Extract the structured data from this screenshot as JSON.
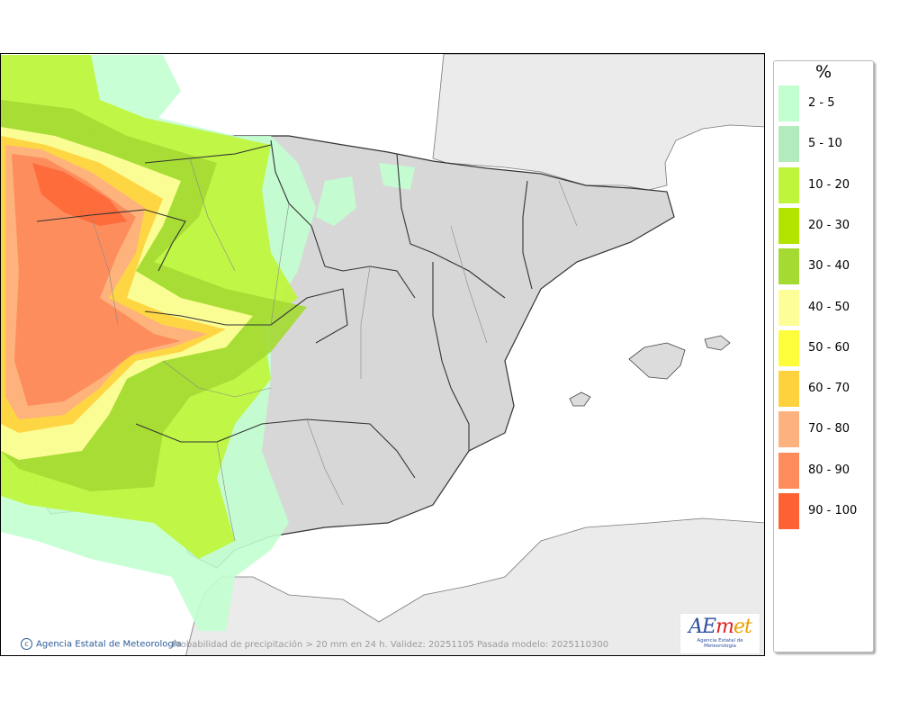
{
  "legend": {
    "unit": "%",
    "items": [
      {
        "label": "2 - 5",
        "color": "#c2ffd0"
      },
      {
        "label": "5 - 10",
        "color": "#b3ecbc"
      },
      {
        "label": "10 - 20",
        "color": "#bff53a"
      },
      {
        "label": "20 - 30",
        "color": "#b2e400"
      },
      {
        "label": "30 - 40",
        "color": "#a4da32"
      },
      {
        "label": "40 - 50",
        "color": "#fefe99"
      },
      {
        "label": "50 - 60",
        "color": "#fdfd3c"
      },
      {
        "label": "60 - 70",
        "color": "#fed23c"
      },
      {
        "label": "70 - 80",
        "color": "#fdb17e"
      },
      {
        "label": "80 - 90",
        "color": "#fe8b5c"
      },
      {
        "label": "90 - 100",
        "color": "#fe6232"
      }
    ]
  },
  "footer": {
    "credit": "Agencia Estatal de Meteorología",
    "caption": "Probabilidad de precipitación > 20 mm en 24 h. Validez: 20251105 Pasada modelo: 2025110300"
  },
  "logo": {
    "text": "AEmet",
    "subtitle": "Agencia Estatal de Meteorología"
  },
  "colors": {
    "sea": "#ffffff",
    "foreign_land": "#ebebeb",
    "spain_land": "#d7d7d7",
    "border": "#333333"
  }
}
